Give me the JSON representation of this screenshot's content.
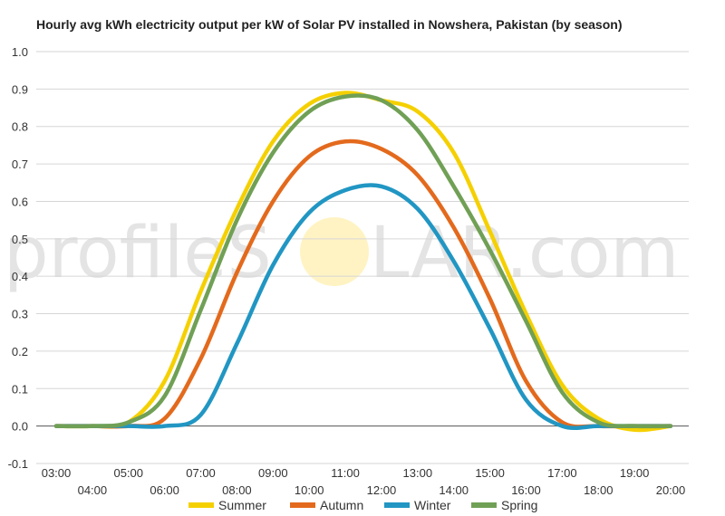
{
  "chart_data": {
    "type": "line",
    "title": "Hourly avg kWh electricity output per kW of Solar PV installed in Nowshera, Pakistan (by season)",
    "xlabel": "",
    "ylabel": "",
    "x": [
      "03:00",
      "04:00",
      "05:00",
      "06:00",
      "07:00",
      "08:00",
      "09:00",
      "10:00",
      "11:00",
      "12:00",
      "13:00",
      "14:00",
      "15:00",
      "16:00",
      "17:00",
      "18:00",
      "19:00",
      "20:00"
    ],
    "ylim": [
      -0.1,
      1.0
    ],
    "yticks": [
      "1.0",
      "0.9",
      "0.8",
      "0.7",
      "0.6",
      "0.5",
      "0.4",
      "0.3",
      "0.2",
      "0.1",
      "0.0",
      "-0.1"
    ],
    "grid": true,
    "legend_position": "bottom",
    "series": [
      {
        "name": "Summer",
        "color": "#f5d000",
        "values": [
          0.0,
          0.0,
          0.01,
          0.12,
          0.36,
          0.58,
          0.76,
          0.86,
          0.89,
          0.87,
          0.84,
          0.73,
          0.52,
          0.3,
          0.11,
          0.02,
          -0.01,
          0.0
        ]
      },
      {
        "name": "Autumn",
        "color": "#e36a1d",
        "values": [
          0.0,
          0.0,
          0.0,
          0.02,
          0.18,
          0.41,
          0.6,
          0.72,
          0.76,
          0.74,
          0.67,
          0.53,
          0.34,
          0.12,
          0.01,
          0.0,
          0.0,
          0.0
        ]
      },
      {
        "name": "Winter",
        "color": "#2196c3",
        "values": [
          0.0,
          0.0,
          0.0,
          0.0,
          0.03,
          0.22,
          0.43,
          0.57,
          0.63,
          0.64,
          0.58,
          0.44,
          0.26,
          0.07,
          0.0,
          0.0,
          0.0,
          0.0
        ]
      },
      {
        "name": "Spring",
        "color": "#70a055",
        "values": [
          0.0,
          0.0,
          0.01,
          0.08,
          0.31,
          0.55,
          0.73,
          0.84,
          0.88,
          0.87,
          0.79,
          0.64,
          0.47,
          0.28,
          0.09,
          0.01,
          0.0,
          0.0
        ]
      }
    ]
  },
  "watermark": {
    "left": "profileS",
    "right": "LAR.com",
    "sun_color": "#fff3c4"
  }
}
